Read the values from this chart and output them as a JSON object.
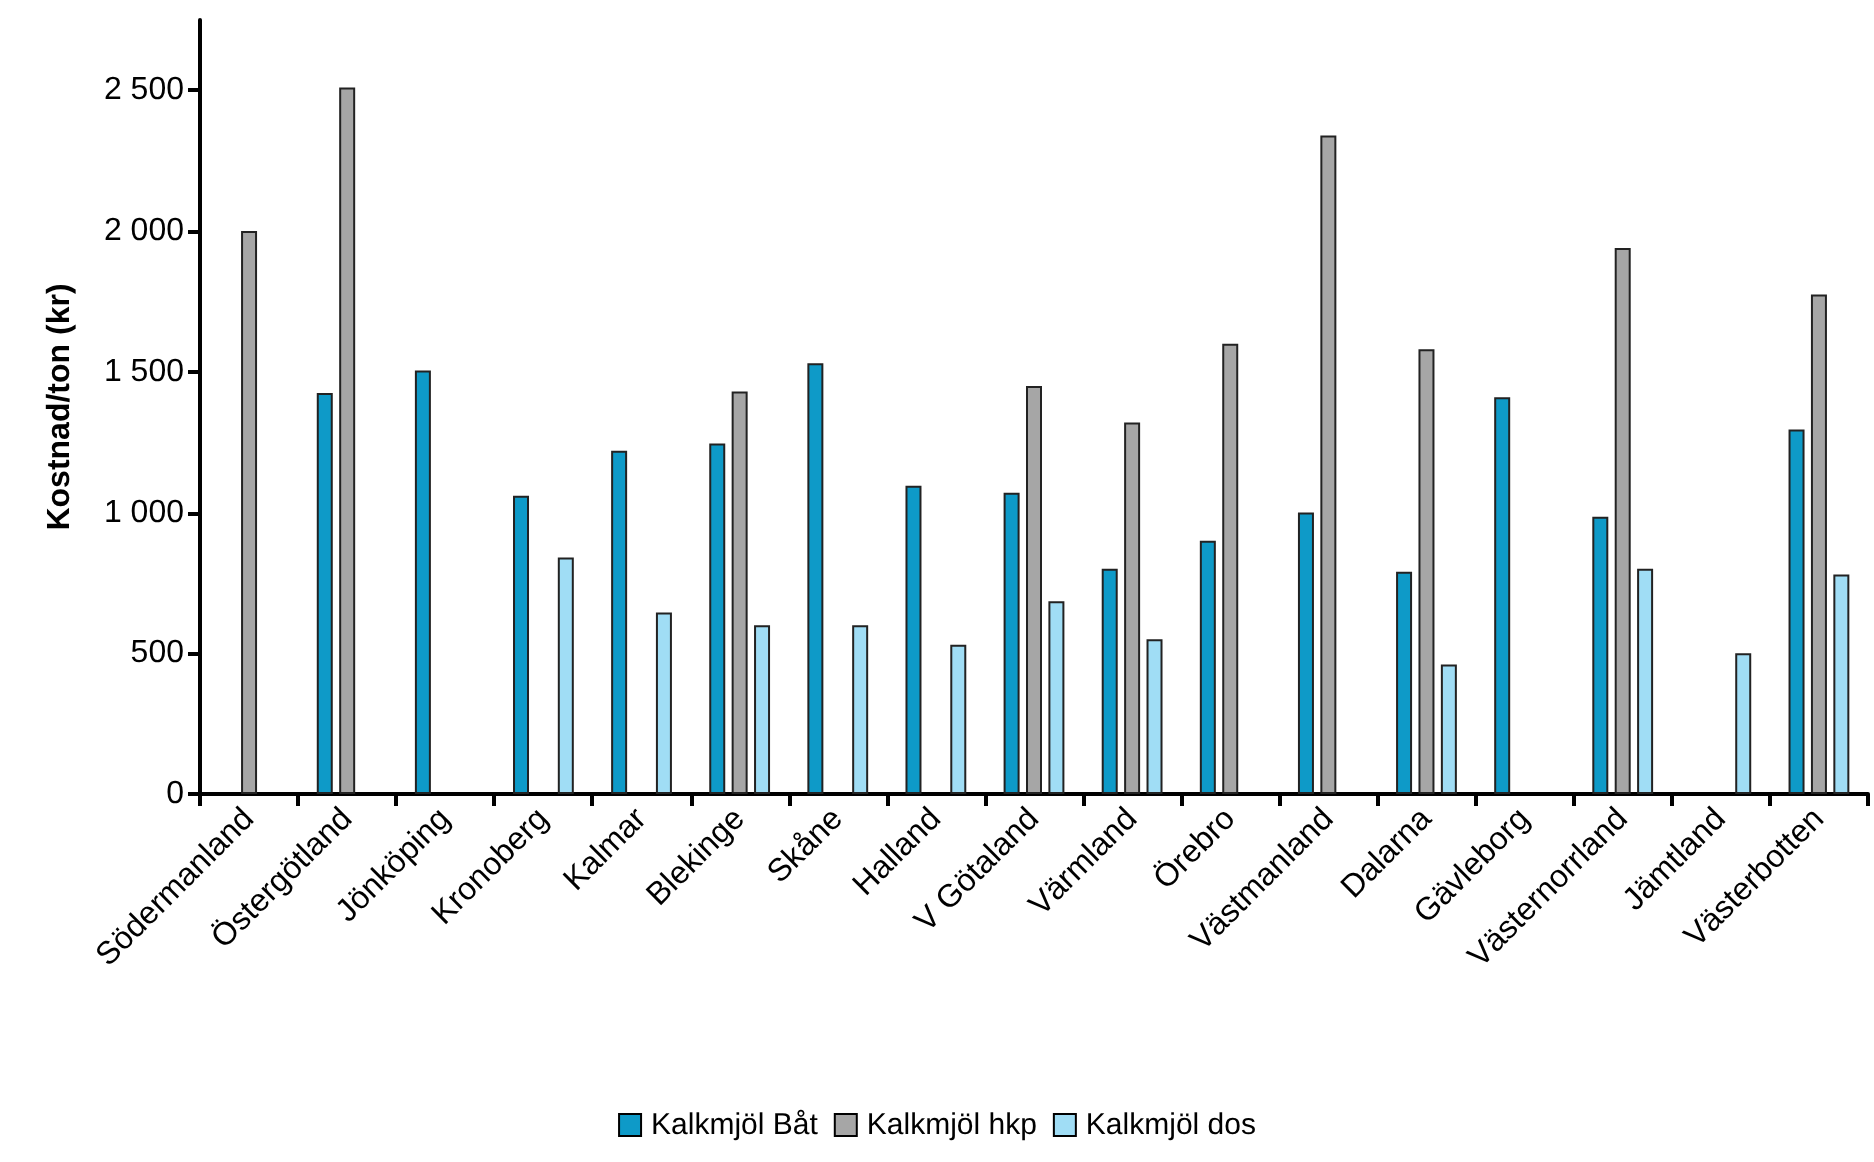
{
  "chart_data": {
    "type": "bar",
    "ylabel": "Kostnad/ton (kr)",
    "categories": [
      "Södermanland",
      "Östergötland",
      "Jönköping",
      "Kronoberg",
      "Kalmar",
      "Blekinge",
      "Skåne",
      "Halland",
      "V Götaland",
      "Värmland",
      "Örebro",
      "Västmanland",
      "Dalarna",
      "Gävleborg",
      "Västernorrland",
      "Jämtland",
      "Västerbotten"
    ],
    "series": [
      {
        "name": "Kalkmjöl Båt",
        "color": "#0e9ac8",
        "values": [
          null,
          1425,
          1505,
          1060,
          1220,
          1245,
          1530,
          1095,
          1070,
          800,
          900,
          1000,
          790,
          1410,
          985,
          null,
          1295
        ]
      },
      {
        "name": "Kalkmjöl hkp",
        "color": "#a6a6a6",
        "values": [
          2000,
          2510,
          null,
          null,
          null,
          1430,
          null,
          null,
          1450,
          1320,
          1600,
          2340,
          1580,
          null,
          1940,
          null,
          1775
        ]
      },
      {
        "name": "Kalkmjöl dos",
        "color": "#a0ddf5",
        "values": [
          null,
          null,
          null,
          840,
          645,
          600,
          600,
          530,
          685,
          550,
          null,
          null,
          460,
          null,
          800,
          500,
          780
        ]
      }
    ],
    "ylim": [
      0,
      2750
    ],
    "yticks": [
      0,
      500,
      {
        "value": 1000,
        "label": "1 000"
      },
      {
        "value": 1500,
        "label": "1 500"
      },
      {
        "value": 2000,
        "label": "2 000"
      },
      {
        "value": 2500,
        "label": "2 500"
      }
    ],
    "grid": false,
    "legend": "bottom"
  }
}
